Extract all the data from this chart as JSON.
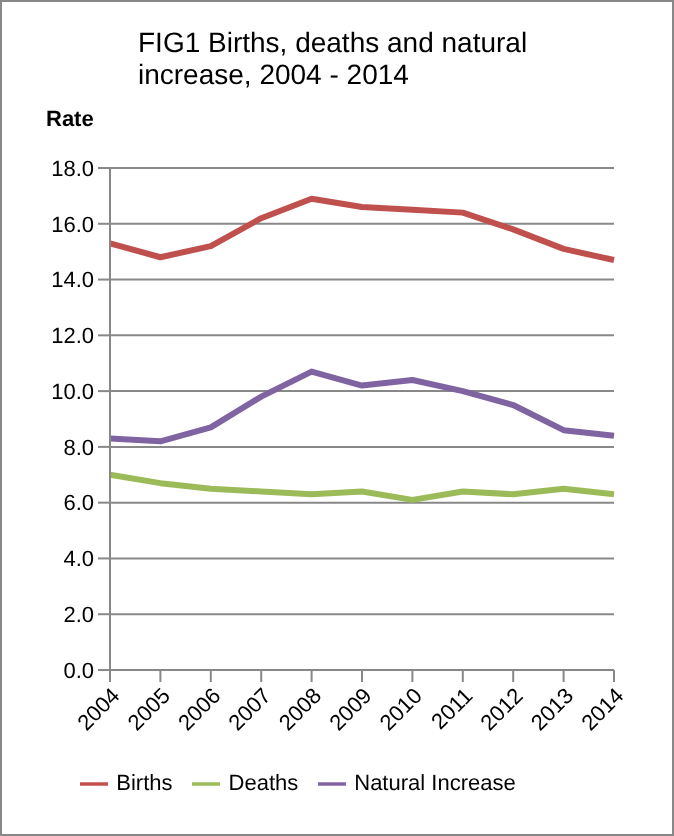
{
  "chart_data": {
    "type": "line",
    "title": "FIG1 Births, deaths  and natural increase, 2004  - 2014",
    "ylabel": "Rate",
    "categories": [
      "2004",
      "2005",
      "2006",
      "2007",
      "2008",
      "2009",
      "2010",
      "2011",
      "2012",
      "2013",
      "2014"
    ],
    "series": [
      {
        "name": "Births",
        "color": "#c0504d",
        "values": [
          15.3,
          14.8,
          15.2,
          16.2,
          16.9,
          16.6,
          16.5,
          16.4,
          15.8,
          15.1,
          14.7
        ]
      },
      {
        "name": "Deaths",
        "color": "#9bbb59",
        "values": [
          7.0,
          6.7,
          6.5,
          6.4,
          6.3,
          6.4,
          6.1,
          6.4,
          6.3,
          6.5,
          6.3
        ]
      },
      {
        "name": "Natural Increase",
        "color": "#8064a2",
        "values": [
          8.3,
          8.2,
          8.7,
          9.8,
          10.7,
          10.2,
          10.4,
          10.0,
          9.5,
          8.6,
          8.4
        ]
      }
    ],
    "ylim": [
      0,
      18
    ],
    "yticks": [
      {
        "value": 0,
        "label": "0.0"
      },
      {
        "value": 2,
        "label": "2.0"
      },
      {
        "value": 4,
        "label": "4.0"
      },
      {
        "value": 6,
        "label": "6.0"
      },
      {
        "value": 8,
        "label": "8.0"
      },
      {
        "value": 10,
        "label": "10.0"
      },
      {
        "value": 12,
        "label": "12.0"
      },
      {
        "value": 14,
        "label": "14.0"
      },
      {
        "value": 16,
        "label": "16.0"
      },
      {
        "value": 18,
        "label": "18.0"
      }
    ],
    "grid": "y",
    "legend": "bottom",
    "marker": "none",
    "line_style": "solid"
  }
}
